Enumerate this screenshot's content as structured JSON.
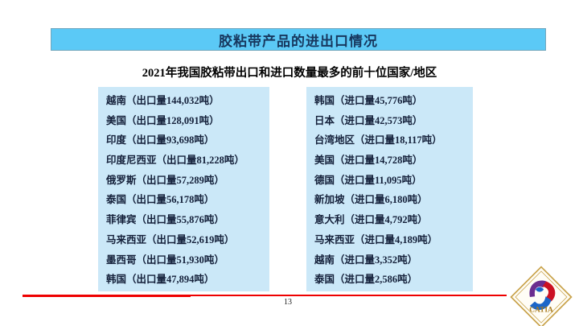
{
  "slide": {
    "title": "胶粘带产品的进出口情况",
    "subtitle": "2021年我国胶粘带出口和进口数量最多的前十位国家/地区",
    "page_number": "13"
  },
  "export_list": {
    "items": [
      "越南（出口量144,032吨）",
      "美国（出口量128,091吨）",
      "印度（出口量93,698吨）",
      "印度尼西亚（出口量81,228吨）",
      "俄罗斯（出口量57,289吨）",
      "泰国（出口量56,178吨）",
      "菲律宾（出口量55,876吨）",
      "马来西亚（出口量52,619吨）",
      "墨西哥（出口量51,930吨）",
      "韩国（出口量47,894吨）"
    ]
  },
  "import_list": {
    "items": [
      "韩国（进口量45,776吨）",
      "日本（进口量42,573吨）",
      "台湾地区（进口量18,117吨）",
      "美国（进口量14,728吨）",
      "德国（进口量11,095吨）",
      "新加坡（进口量6,180吨）",
      "意大利（进口量4,792吨）",
      "马来西亚（进口量4,189吨）",
      "越南（进口量3,352吨）",
      "泰国（进口量2,586吨）"
    ]
  },
  "logo": {
    "text": "CATIA"
  },
  "colors": {
    "title_bar_bg": "#5BC9F6",
    "title_text": "#17375E",
    "box_bg": "#CBE8F8",
    "body_text": "#14203A",
    "divider_red": "#EE0000",
    "logo_gold": "#B8860B",
    "logo_purple": "#6B2D8F",
    "logo_red": "#CC1122",
    "logo_blue": "#1B66C9"
  }
}
